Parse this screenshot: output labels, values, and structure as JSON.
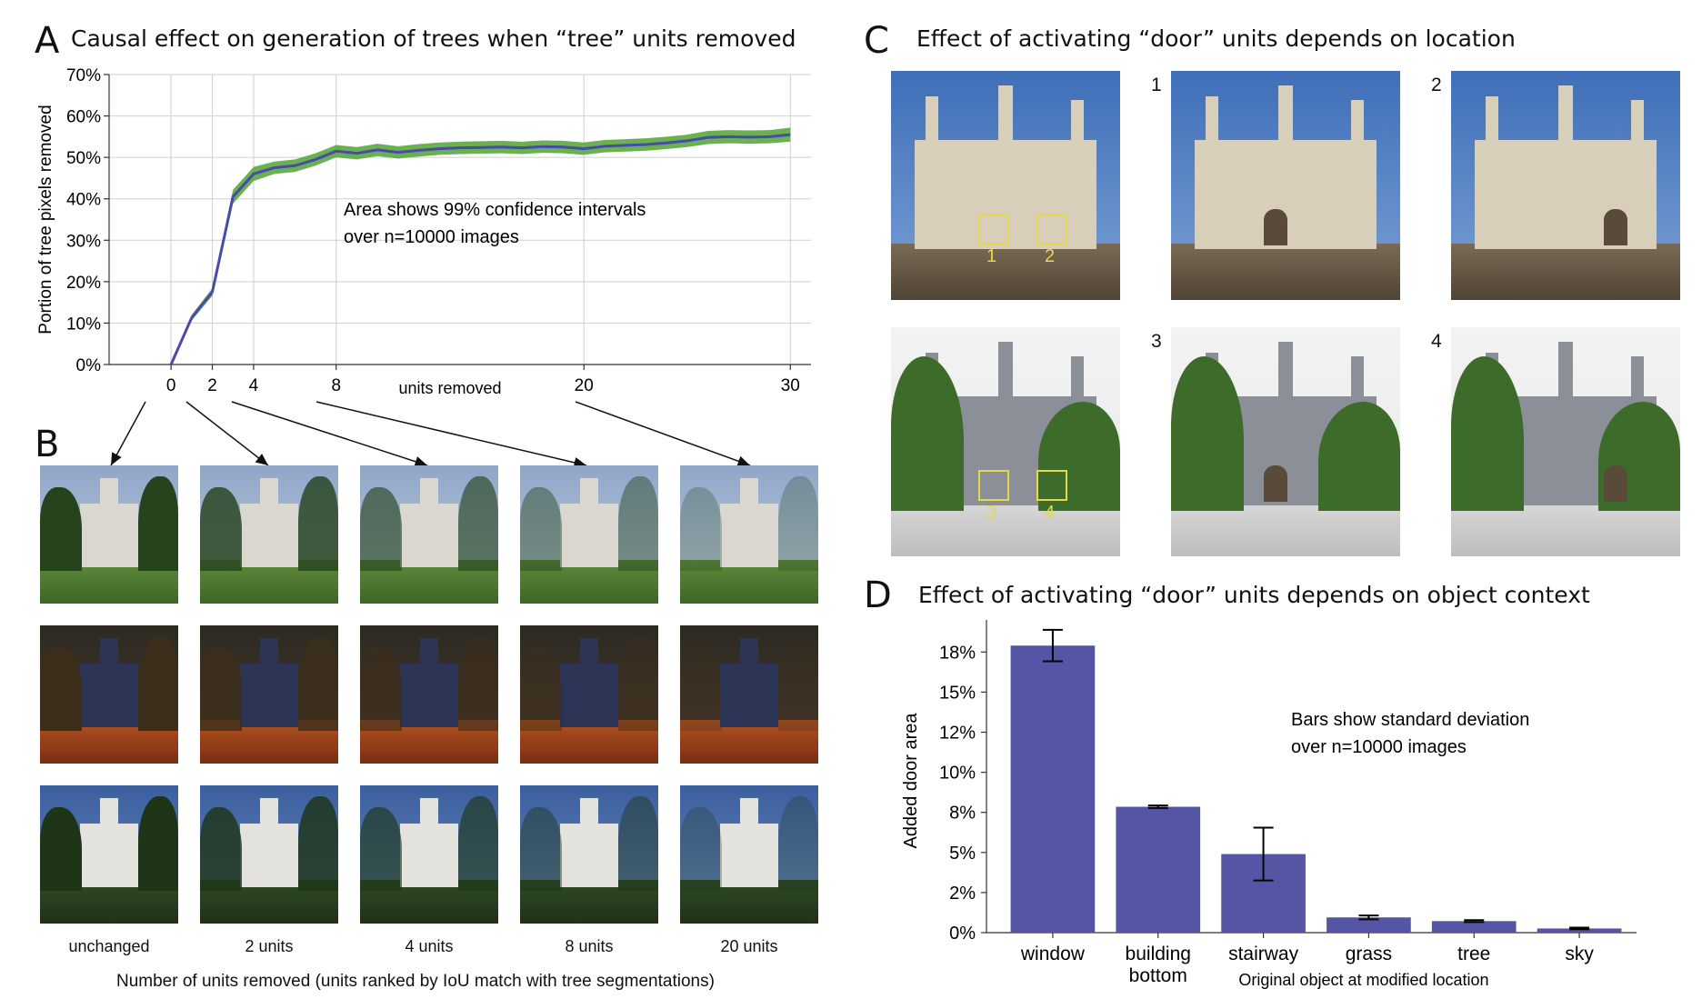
{
  "chart_data": [
    {
      "panel": "A",
      "type": "line",
      "title": "Causal effect on generation of trees when “tree” units removed",
      "xlabel": "units removed",
      "ylabel": "Portion of tree pixels removed",
      "xlim": [
        -3,
        31
      ],
      "ylim": [
        0,
        70
      ],
      "x_ticks": [
        0,
        2,
        4,
        8,
        20,
        30
      ],
      "x_tick_labels": [
        "0",
        "2",
        "4",
        "8",
        "20",
        "30"
      ],
      "y_ticks": [
        0,
        10,
        20,
        30,
        40,
        50,
        60,
        70
      ],
      "y_tick_labels": [
        "0%",
        "10%",
        "20%",
        "30%",
        "40%",
        "50%",
        "60%",
        "70%"
      ],
      "x_grid": [
        0,
        2,
        4,
        8,
        20,
        30
      ],
      "annotation": [
        "Area shows 99% confidence intervals",
        "over n=10000 images"
      ],
      "series": [
        {
          "name": "mean",
          "color": "#4a4aa8",
          "band_color": "#5aa83e",
          "x": [
            0,
            1,
            2,
            3,
            4,
            5,
            6,
            7,
            8,
            9,
            10,
            11,
            12,
            13,
            14,
            15,
            16,
            17,
            18,
            19,
            20,
            21,
            22,
            23,
            24,
            25,
            26,
            27,
            28,
            29,
            30
          ],
          "values": [
            0,
            11.3,
            17.5,
            40.5,
            46,
            47.5,
            48,
            49.5,
            51.5,
            51,
            51.8,
            51.2,
            51.7,
            52.1,
            52.3,
            52.4,
            52.5,
            52.3,
            52.6,
            52.5,
            52.1,
            52.7,
            52.9,
            53.1,
            53.5,
            54,
            54.8,
            55,
            54.9,
            55,
            55.5
          ],
          "lower": [
            0,
            10.6,
            16.6,
            38.8,
            44.3,
            46,
            46.5,
            48,
            50,
            49.5,
            50.3,
            49.7,
            50.2,
            50.6,
            50.8,
            50.9,
            51,
            50.8,
            51.1,
            51,
            50.6,
            51.2,
            51.4,
            51.6,
            52,
            52.5,
            53.2,
            53.4,
            53.3,
            53.4,
            53.8
          ],
          "upper": [
            0,
            12,
            18.4,
            42.2,
            47.7,
            49,
            49.5,
            51,
            53,
            52.5,
            53.3,
            52.7,
            53.2,
            53.6,
            53.8,
            53.9,
            54,
            53.8,
            54.1,
            54,
            53.6,
            54.2,
            54.4,
            54.6,
            55,
            55.5,
            56.4,
            56.6,
            56.5,
            56.6,
            57.2
          ]
        }
      ]
    },
    {
      "panel": "D",
      "type": "bar",
      "title": "Effect of activating “door” units depends on object context",
      "xlabel": "Original object at modified location",
      "ylabel": "Added door area",
      "ylim": [
        0,
        19.5
      ],
      "y_ticks": [
        0,
        2.5,
        5,
        7.5,
        10,
        12.5,
        15,
        17.5
      ],
      "y_tick_labels": [
        "0%",
        "2%",
        "5%",
        "8%",
        "10%",
        "12%",
        "15%",
        "18%"
      ],
      "categories": [
        [
          "window"
        ],
        [
          "building",
          "bottom"
        ],
        [
          "stairway"
        ],
        [
          "grass"
        ],
        [
          "tree"
        ],
        [
          "sky"
        ]
      ],
      "values": [
        17.9,
        7.85,
        4.9,
        0.95,
        0.72,
        0.26
      ],
      "errors": [
        0.98,
        0.08,
        1.65,
        0.12,
        0.06,
        0.05
      ],
      "bar_color": "#5555a6",
      "annotation": [
        "Bars show standard deviation",
        "over n=10000 images"
      ]
    }
  ],
  "panel_labels": {
    "a": "A",
    "b": "B",
    "c": "C",
    "d": "D"
  },
  "panel_b": {
    "columns": [
      "unchanged",
      "2 units",
      "4 units",
      "8 units",
      "20 units"
    ],
    "xlabel": "Number of units removed (units ranked by IoU match with tree segmentations)"
  },
  "panel_c": {
    "title": "Effect of activating “door” units depends on location",
    "numbers": [
      "1",
      "2",
      "3",
      "4"
    ],
    "markers": [
      "1",
      "2",
      "3",
      "4"
    ]
  }
}
